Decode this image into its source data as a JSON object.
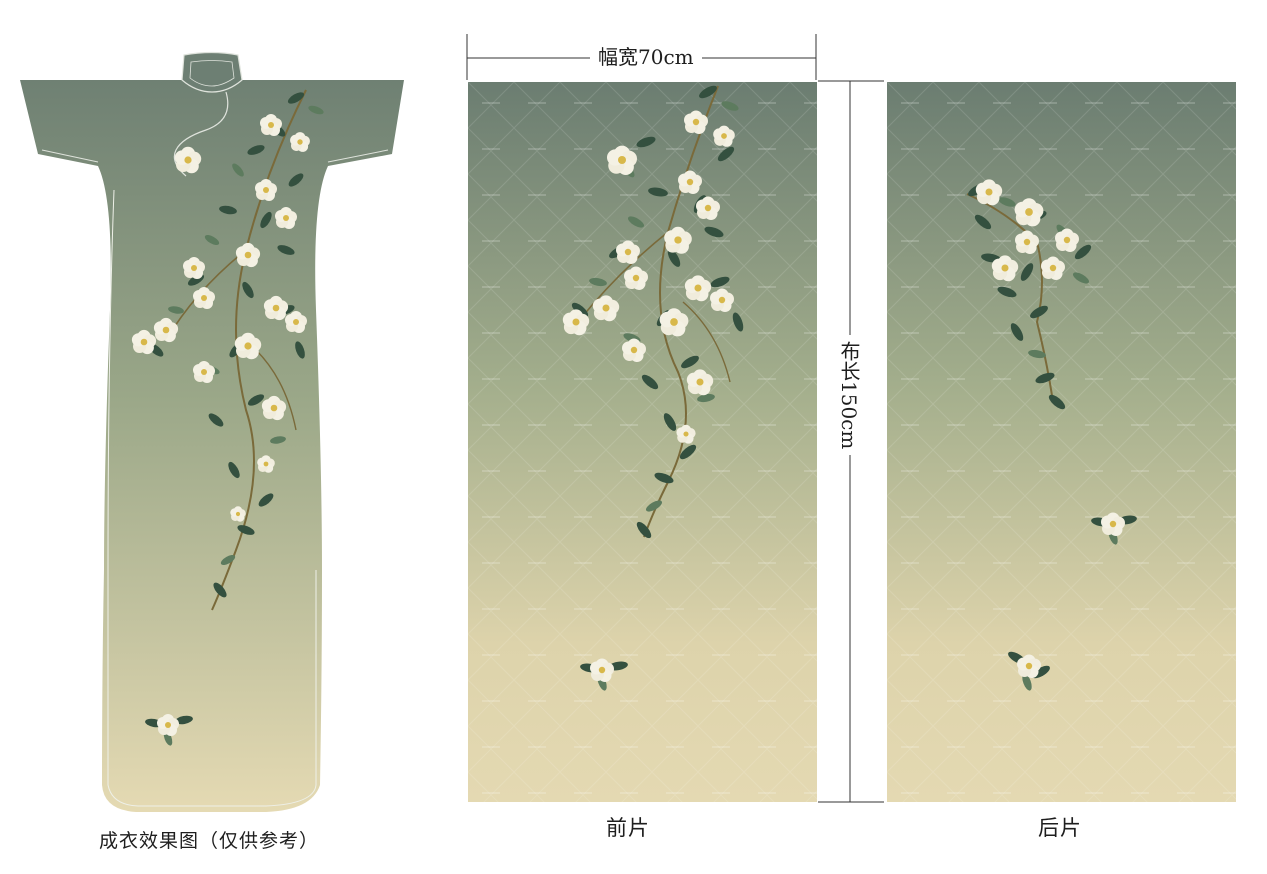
{
  "garment": {
    "caption": "成衣效果图（仅供参考）"
  },
  "panels": {
    "front": {
      "label": "前片"
    },
    "back": {
      "label": "后片"
    }
  },
  "dimensions": {
    "width_label": "幅宽70cm",
    "length_label": "布长150cm"
  },
  "colors": {
    "gradient_top": "#6c7e72",
    "gradient_mid": "#9ba98a",
    "gradient_bottom": "#e3d8b2",
    "leaf": "#34503f",
    "leaf_light": "#5d7b5e",
    "flower": "#f4f1e4",
    "flower_center": "#d8b84a",
    "branch": "#7a6a3a"
  }
}
